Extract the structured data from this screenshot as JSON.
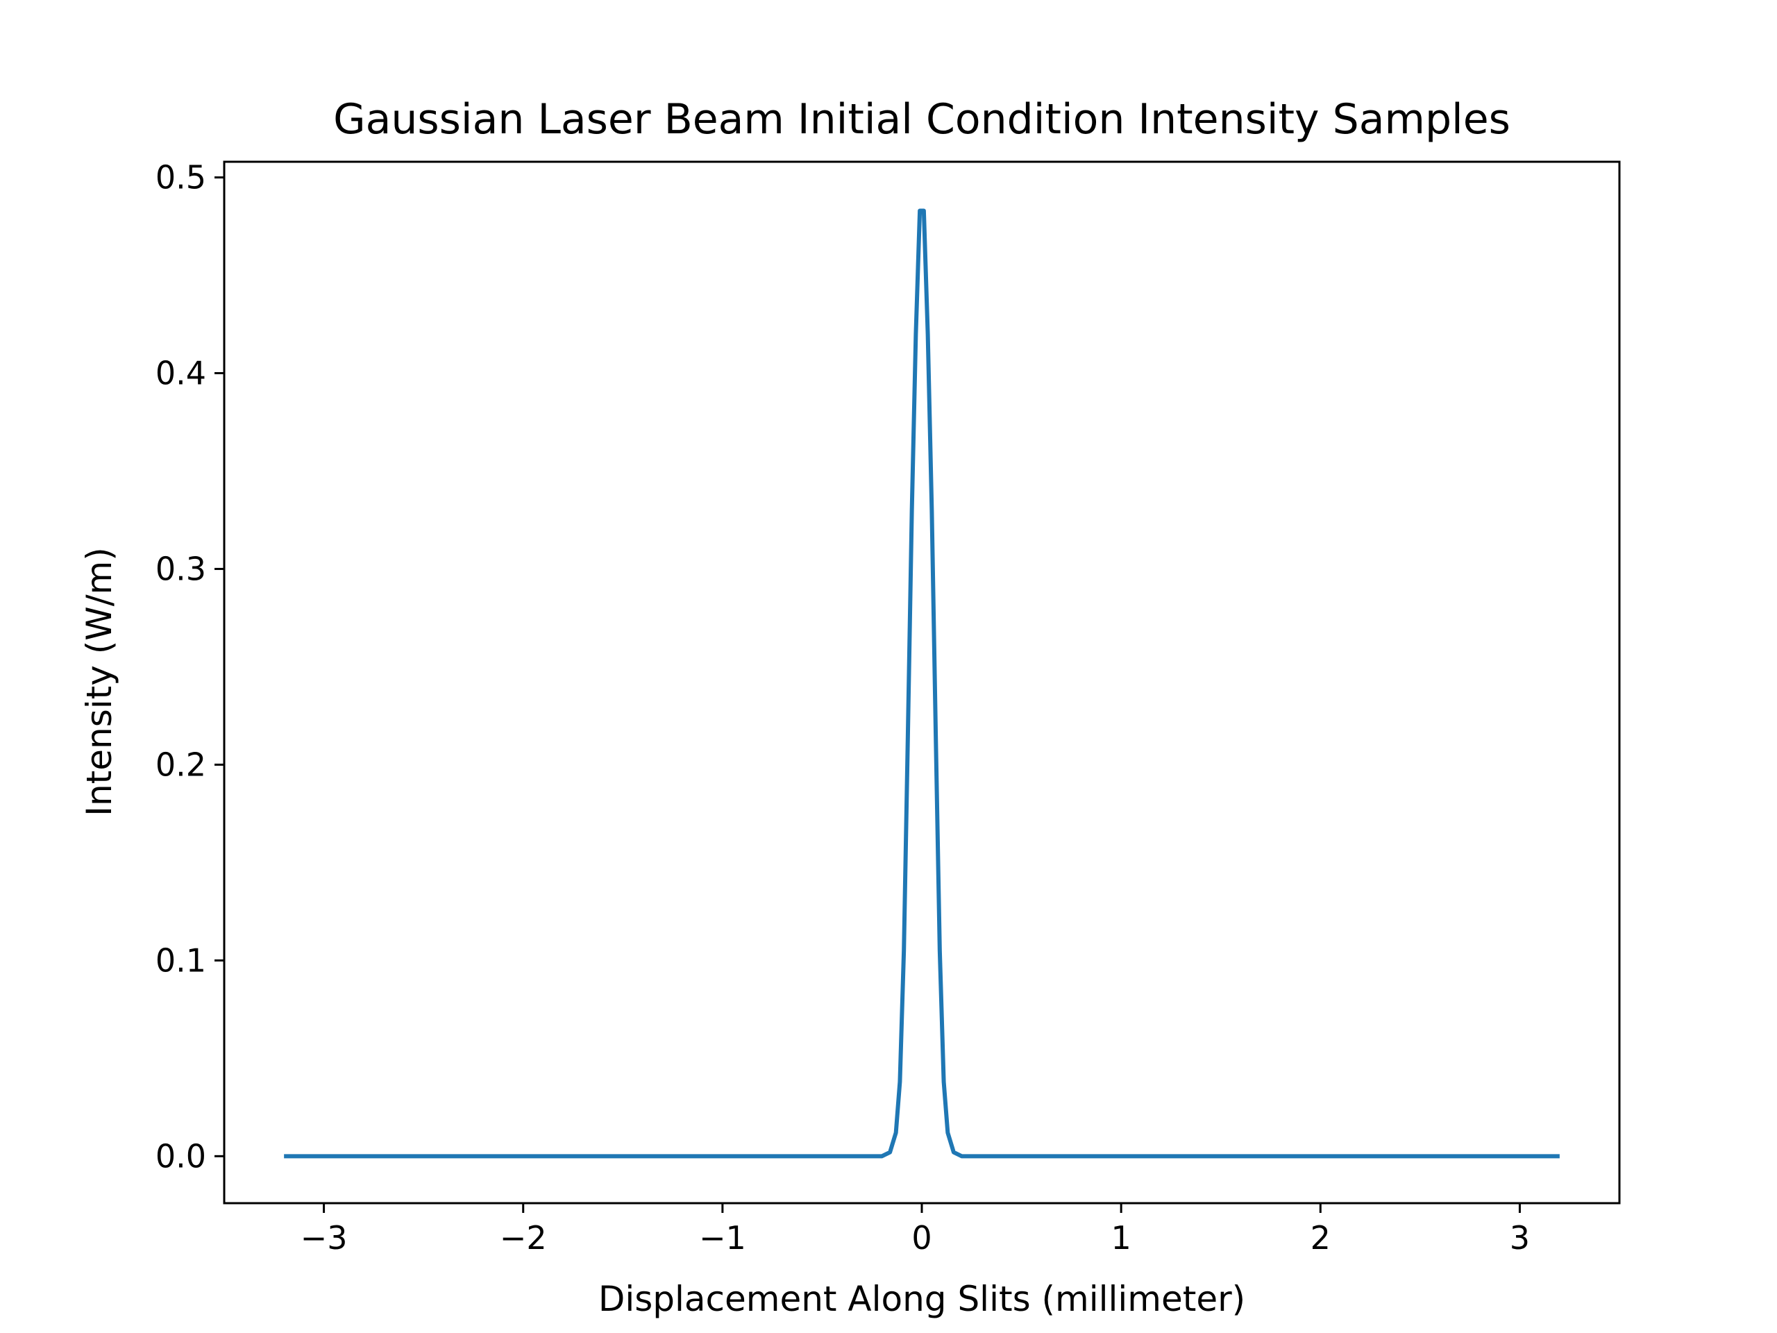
{
  "chart_data": {
    "type": "line",
    "title": "Gaussian Laser Beam Initial Condition Intensity Samples",
    "xlabel": "Displacement Along Slits (millimeter)",
    "ylabel": "Intensity (W/m)",
    "xlim": [
      -3.5,
      3.5
    ],
    "ylim": [
      -0.024,
      0.508
    ],
    "xticks": [
      -3,
      -2,
      -1,
      0,
      1,
      2,
      3
    ],
    "xtick_labels": [
      "−3",
      "−2",
      "−1",
      "0",
      "1",
      "2",
      "3"
    ],
    "yticks": [
      0.0,
      0.1,
      0.2,
      0.3,
      0.4,
      0.5
    ],
    "ytick_labels": [
      "0.0",
      "0.1",
      "0.2",
      "0.3",
      "0.4",
      "0.5"
    ],
    "grid": false,
    "series": [
      {
        "name": "intensity",
        "color": "#1f77b4",
        "x": [
          -3.2,
          -0.2,
          -0.16,
          -0.13,
          -0.11,
          -0.09,
          -0.07,
          -0.05,
          -0.03,
          -0.01,
          0.01,
          0.03,
          0.05,
          0.07,
          0.09,
          0.11,
          0.13,
          0.16,
          0.2,
          3.2
        ],
        "y": [
          0.0,
          0.0,
          0.002,
          0.012,
          0.038,
          0.105,
          0.215,
          0.33,
          0.42,
          0.483,
          0.483,
          0.42,
          0.33,
          0.215,
          0.105,
          0.038,
          0.012,
          0.002,
          0.0,
          0.0
        ]
      }
    ]
  }
}
